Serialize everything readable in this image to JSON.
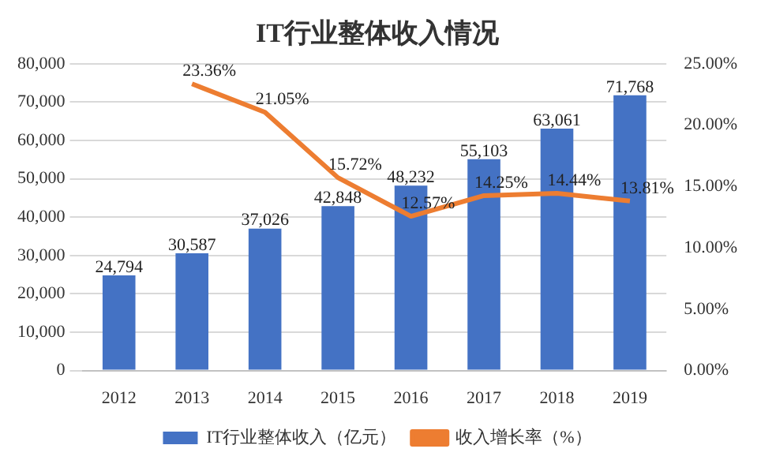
{
  "chart_data": {
    "type": "bar",
    "title": "IT行业整体收入情况",
    "categories": [
      "2012",
      "2013",
      "2014",
      "2015",
      "2016",
      "2017",
      "2018",
      "2019"
    ],
    "series": [
      {
        "name": "IT行业整体收入（亿元）",
        "color": "#4472c4",
        "values": [
          24794,
          30587,
          37026,
          42848,
          48232,
          55103,
          63061,
          71768
        ],
        "value_labels": [
          "24,794",
          "30,587",
          "37,026",
          "42,848",
          "48,232",
          "55,103",
          "63,061",
          "71,768"
        ]
      },
      {
        "name": "收入增长率（%）",
        "type": "line",
        "axis": "y2",
        "color": "#ed7d31",
        "values": [
          null,
          23.36,
          21.05,
          15.72,
          12.57,
          14.25,
          14.44,
          13.81
        ],
        "value_labels": [
          null,
          "23.36%",
          "21.05%",
          "15.72%",
          "12.57%",
          "14.25%",
          "14.44%",
          "13.81%"
        ]
      }
    ],
    "ylim": [
      0,
      80000
    ],
    "yticks": [
      {
        "value": 0,
        "label": "0"
      },
      {
        "value": 10000,
        "label": "10,000"
      },
      {
        "value": 20000,
        "label": "20,000"
      },
      {
        "value": 30000,
        "label": "30,000"
      },
      {
        "value": 40000,
        "label": "40,000"
      },
      {
        "value": 50000,
        "label": "50,000"
      },
      {
        "value": 60000,
        "label": "60,000"
      },
      {
        "value": 70000,
        "label": "70,000"
      },
      {
        "value": 80000,
        "label": "80,000"
      }
    ],
    "y2lim": [
      0,
      25
    ],
    "y2ticks": [
      {
        "value": 0,
        "label": "0.00%"
      },
      {
        "value": 5,
        "label": "5.00%"
      },
      {
        "value": 10,
        "label": "10.00%"
      },
      {
        "value": 15,
        "label": "15.00%"
      },
      {
        "value": 20,
        "label": "20.00%"
      },
      {
        "value": 25,
        "label": "25.00%"
      }
    ],
    "grid": "y",
    "legend": "bottom",
    "marker": "none",
    "line_style": "solid"
  }
}
